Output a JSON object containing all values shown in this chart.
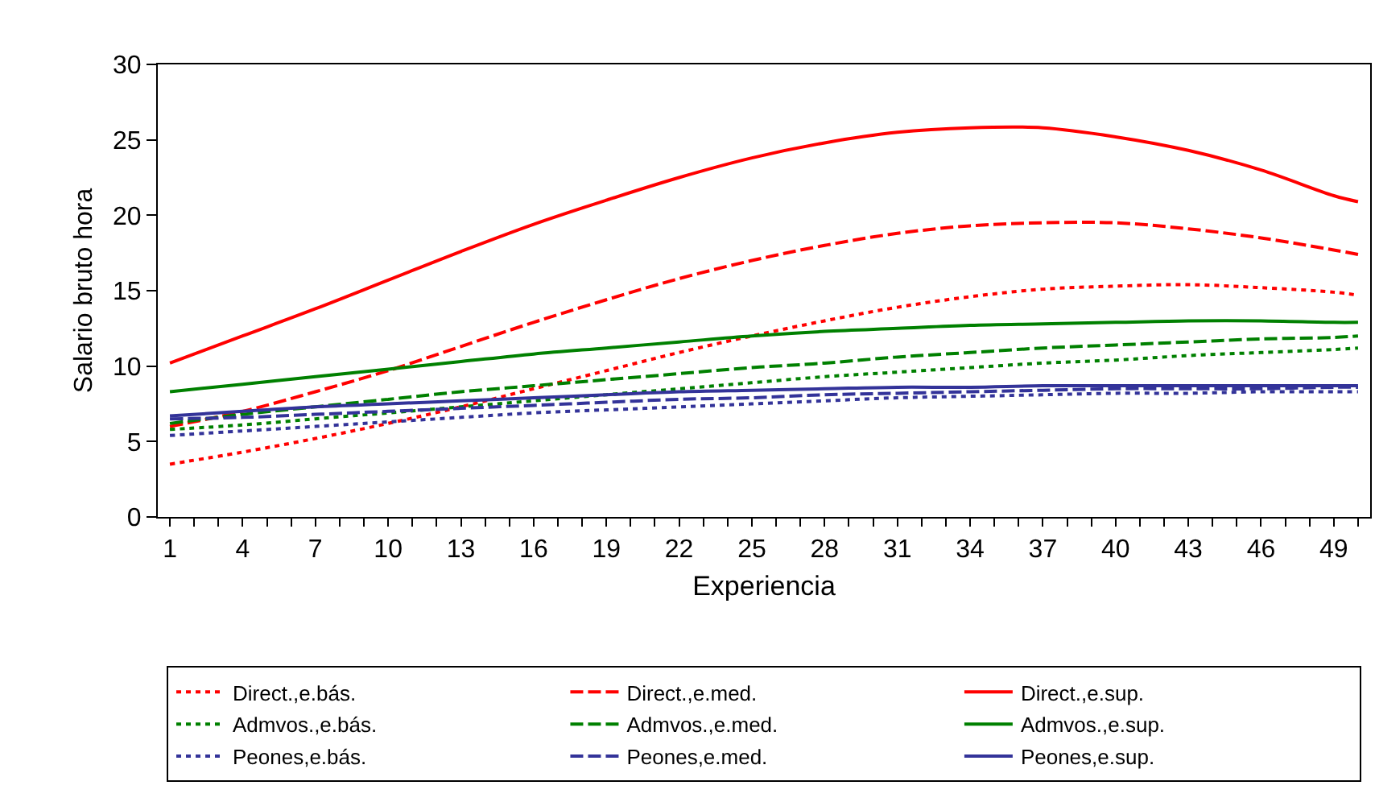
{
  "chart_data": {
    "type": "line",
    "xlabel": "Experiencia",
    "ylabel": "Salario bruto hora",
    "x": [
      1,
      4,
      7,
      10,
      13,
      16,
      19,
      22,
      25,
      28,
      31,
      34,
      37,
      40,
      43,
      46,
      49,
      50
    ],
    "xlim": [
      0.5,
      50.5
    ],
    "xticks": [
      1,
      4,
      7,
      10,
      13,
      16,
      19,
      22,
      25,
      28,
      31,
      34,
      37,
      40,
      43,
      46,
      49
    ],
    "ylim": [
      0,
      30
    ],
    "yticks": [
      0,
      5,
      10,
      15,
      20,
      25,
      30
    ],
    "grid": false,
    "legend": "bottom",
    "marker": "none",
    "series": [
      {
        "name": "Direct.,e.bás.",
        "color": "#ff0000",
        "line_style": "dotted",
        "values": [
          3.5,
          4.3,
          5.2,
          6.2,
          7.3,
          8.5,
          9.7,
          10.9,
          12,
          13,
          13.9,
          14.6,
          15.1,
          15.3,
          15.4,
          15.2,
          14.9,
          14.7
        ]
      },
      {
        "name": "Direct.,e.med.",
        "color": "#ff0000",
        "line_style": "dashed",
        "values": [
          6,
          7,
          8.3,
          9.7,
          11.3,
          12.9,
          14.4,
          15.8,
          17,
          18,
          18.8,
          19.3,
          19.5,
          19.5,
          19.1,
          18.5,
          17.7,
          17.4
        ]
      },
      {
        "name": "Direct.,e.sup.",
        "color": "#ff0000",
        "line_style": "solid",
        "values": [
          10.2,
          12,
          13.8,
          15.7,
          17.6,
          19.4,
          21,
          22.5,
          23.8,
          24.8,
          25.5,
          25.8,
          25.8,
          25.2,
          24.3,
          23,
          21.3,
          20.9
        ]
      },
      {
        "name": "Admvos.,e.bás.",
        "color": "#008000",
        "line_style": "dotted",
        "values": [
          5.8,
          6.1,
          6.5,
          6.9,
          7.3,
          7.7,
          8.1,
          8.5,
          8.9,
          9.3,
          9.6,
          9.9,
          10.2,
          10.4,
          10.7,
          10.9,
          11.1,
          11.2
        ]
      },
      {
        "name": "Admvos.,e.med.",
        "color": "#008000",
        "line_style": "dashed",
        "values": [
          6.2,
          6.8,
          7.3,
          7.8,
          8.3,
          8.7,
          9.1,
          9.5,
          9.9,
          10.2,
          10.6,
          10.9,
          11.2,
          11.4,
          11.6,
          11.8,
          11.9,
          12
        ]
      },
      {
        "name": "Admvos.,e.sup.",
        "color": "#008000",
        "line_style": "solid",
        "values": [
          8.3,
          8.8,
          9.3,
          9.8,
          10.3,
          10.8,
          11.2,
          11.6,
          12,
          12.3,
          12.5,
          12.7,
          12.8,
          12.9,
          13,
          13,
          12.9,
          12.9
        ]
      },
      {
        "name": "Peones,e.bás.",
        "color": "#333399",
        "line_style": "dotted",
        "values": [
          5.4,
          5.7,
          6,
          6.3,
          6.6,
          6.9,
          7.1,
          7.3,
          7.5,
          7.7,
          7.9,
          8,
          8.1,
          8.2,
          8.2,
          8.3,
          8.3,
          8.3
        ]
      },
      {
        "name": "Peones,e.med.",
        "color": "#333399",
        "line_style": "dashed",
        "values": [
          6.5,
          6.6,
          6.8,
          7,
          7.2,
          7.4,
          7.6,
          7.8,
          7.9,
          8.1,
          8.2,
          8.3,
          8.4,
          8.5,
          8.5,
          8.5,
          8.6,
          8.6
        ]
      },
      {
        "name": "Peones,e.sup.",
        "color": "#333399",
        "line_style": "solid",
        "values": [
          6.7,
          7,
          7.3,
          7.5,
          7.7,
          7.9,
          8.1,
          8.3,
          8.4,
          8.5,
          8.6,
          8.6,
          8.7,
          8.7,
          8.7,
          8.7,
          8.7,
          8.7
        ]
      }
    ]
  }
}
